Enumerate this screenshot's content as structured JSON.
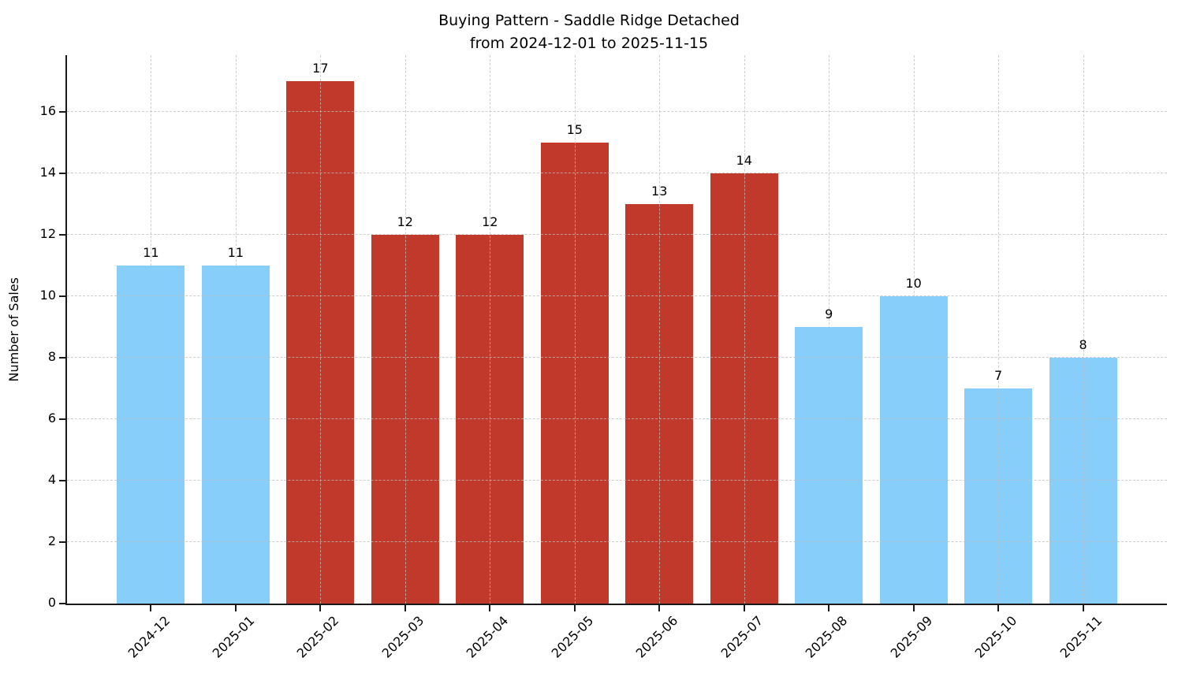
{
  "figure": {
    "background": "#ffffff"
  },
  "chart_data": {
    "type": "bar",
    "title": "Buying Pattern - Saddle Ridge Detached\nfrom 2024-12-01 to 2025-11-15",
    "xlabel": "",
    "ylabel": "Number of Sales",
    "categories": [
      "2024-12",
      "2025-01",
      "2025-02",
      "2025-03",
      "2025-04",
      "2025-05",
      "2025-06",
      "2025-07",
      "2025-08",
      "2025-09",
      "2025-10",
      "2025-11"
    ],
    "values": [
      11,
      11,
      17,
      12,
      12,
      15,
      13,
      14,
      9,
      10,
      7,
      8
    ],
    "bar_colors": [
      "#87CEFA",
      "#87CEFA",
      "#C0392B",
      "#C0392B",
      "#C0392B",
      "#C0392B",
      "#C0392B",
      "#C0392B",
      "#87CEFA",
      "#87CEFA",
      "#87CEFA",
      "#87CEFA"
    ],
    "value_labels": [
      "11",
      "11",
      "17",
      "12",
      "12",
      "15",
      "13",
      "14",
      "9",
      "10",
      "7",
      "8"
    ],
    "yticks": [
      0,
      2,
      4,
      6,
      8,
      10,
      12,
      14,
      16
    ],
    "ylim": [
      0,
      17.85
    ],
    "xlim": [
      -0.99,
      11.99
    ],
    "bar_width_units": 0.8,
    "x_tick_rotation_deg": 45,
    "grid": {
      "on": true,
      "linestyle": "dashed",
      "color": "#BEBEBE",
      "drawn_over_bars": true
    },
    "legend": {
      "visible": false
    },
    "colors": {
      "blue_bar": "#87CEFA",
      "red_bar": "#C0392B",
      "text": "#000000",
      "spine": "#1a1a1a"
    }
  }
}
